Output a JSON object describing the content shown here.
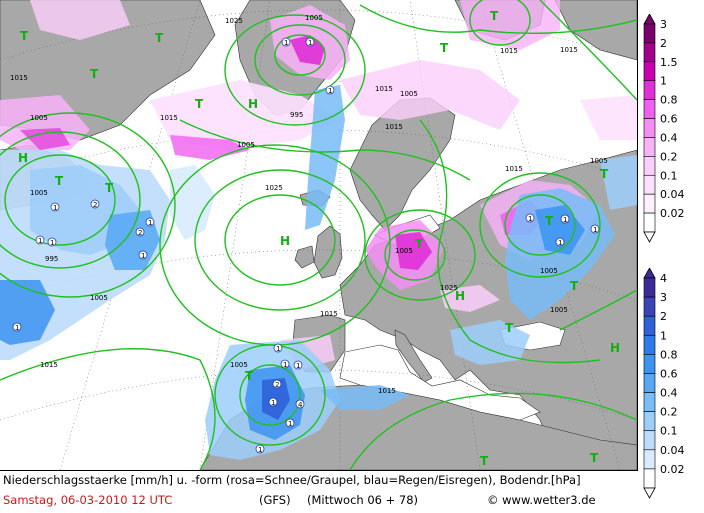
{
  "map": {
    "pressure_labels": [
      "1025",
      "1005",
      "1015",
      "1005",
      "1015",
      "995",
      "1005",
      "1025",
      "1005",
      "1015",
      "1015",
      "1005",
      "995",
      "1005",
      "1015",
      "1015",
      "1005",
      "1025",
      "1015",
      "1015",
      "1005",
      "1005",
      "1005",
      "1015",
      "1015",
      "1005"
    ],
    "pressure_centers": [
      "T",
      "T",
      "T",
      "H",
      "T",
      "T",
      "T",
      "H",
      "H",
      "T",
      "T",
      "T",
      "T",
      "T",
      "H",
      "T",
      "H",
      "T",
      "T",
      "T",
      "T"
    ],
    "precip_marks": [
      "1",
      "2",
      "1",
      "1",
      "1",
      "2",
      "1",
      "1",
      "1",
      "1",
      "1",
      "2",
      "1",
      "4",
      "1",
      "1",
      "1",
      "1",
      "1",
      "1",
      "1",
      "1",
      "1"
    ]
  },
  "legend_snow": {
    "labels": [
      "3",
      "2",
      "1.5",
      "1",
      "0.8",
      "0.6",
      "0.4",
      "0.2",
      "0.1",
      "0.04",
      "0.02"
    ],
    "colors": [
      "#7a006a",
      "#a0008a",
      "#c800b0",
      "#e030d8",
      "#f060f0",
      "#f48ef4",
      "#f8b2f8",
      "#fbcefb",
      "#fde0fd",
      "#fff0ff",
      "#ffffff"
    ]
  },
  "legend_rain": {
    "labels": [
      "4",
      "3",
      "2",
      "1",
      "0.8",
      "0.6",
      "0.4",
      "0.2",
      "0.1",
      "0.04",
      "0.02"
    ],
    "colors": [
      "#3c2a96",
      "#3a44b8",
      "#2f62d8",
      "#2e7ae8",
      "#3c94f0",
      "#56a8f4",
      "#78bcf8",
      "#9ccefa",
      "#bcdcfb",
      "#d8ecfd",
      "#ffffff"
    ]
  },
  "footer": {
    "line1": "Niederschlagsstaerke [mm/h] u. -form (rosa=Schnee/Graupel, blau=Regen/Eisregen), Bodendr.[hPa]",
    "date": "Samstag, 06-03-2010  12 UTC",
    "model": "(GFS)",
    "run": "(Mittwoch 06 + 78)",
    "copyright": "© www.wetter3.de"
  }
}
